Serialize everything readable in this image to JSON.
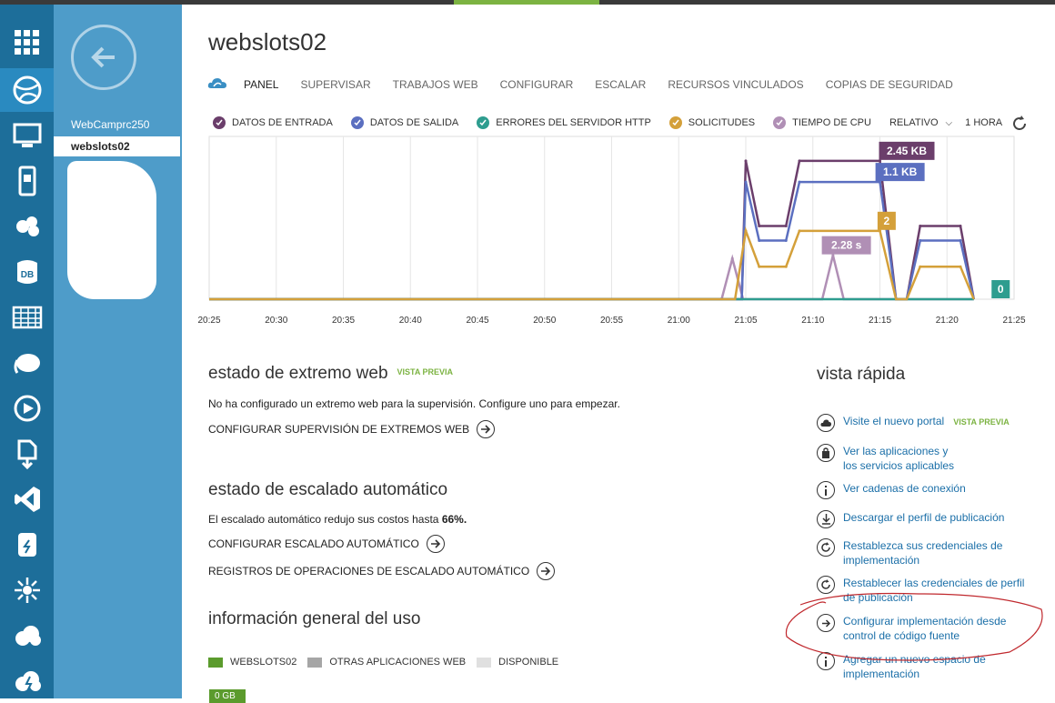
{
  "title": "webslots02",
  "tabs": [
    "PANEL",
    "SUPERVISAR",
    "TRABAJOS WEB",
    "CONFIGURAR",
    "ESCALAR",
    "RECURSOS VINCULADOS",
    "COPIAS DE SEGURIDAD"
  ],
  "sidebar": {
    "items": [
      "WebCamprc250",
      "webslots02"
    ],
    "icons": [
      "all-items-icon",
      "websites-icon",
      "virtual-machines-icon",
      "mobile-services-icon",
      "cloud-services-icon",
      "sql-databases-icon",
      "storage-icon",
      "hdinsight-icon",
      "media-services-icon",
      "service-bus-icon",
      "visual-studio-icon",
      "cache-icon",
      "biztalk-icon",
      "recovery-services-icon",
      "scheduler-icon"
    ]
  },
  "legend": {
    "items": [
      {
        "label": "DATOS DE ENTRADA",
        "color": "#6b3e6b"
      },
      {
        "label": "DATOS DE SALIDA",
        "color": "#5b6fc0"
      },
      {
        "label": "ERRORES DEL SERVIDOR HTTP",
        "color": "#2e9d8f"
      },
      {
        "label": "SOLICITUDES",
        "color": "#d4a03a"
      },
      {
        "label": "TIEMPO DE CPU",
        "color": "#b08fb5"
      }
    ],
    "mode": "RELATIVO",
    "range": "1 HORA"
  },
  "chart_data": {
    "type": "line",
    "x": [
      "20:25",
      "20:30",
      "20:35",
      "20:40",
      "20:45",
      "20:50",
      "20:55",
      "21:00",
      "21:05",
      "21:10",
      "21:15",
      "21:20",
      "21:25"
    ],
    "series": [
      {
        "name": "DATOS DE ENTRADA",
        "color": "#6b3e6b",
        "points": [
          [
            0,
            0
          ],
          [
            39.7,
            0
          ],
          [
            40,
            0.85
          ],
          [
            41,
            0.45
          ],
          [
            43,
            0.45
          ],
          [
            44,
            0.85
          ],
          [
            50,
            0.85
          ],
          [
            51.2,
            0
          ],
          [
            52,
            0
          ],
          [
            53,
            0.45
          ],
          [
            56,
            0.45
          ],
          [
            57,
            0
          ]
        ],
        "badge": "2.45 KB",
        "badge_x": 52.0
      },
      {
        "name": "DATOS DE SALIDA",
        "color": "#5b6fc0",
        "points": [
          [
            0,
            0
          ],
          [
            39.7,
            0
          ],
          [
            40,
            0.72
          ],
          [
            41,
            0.36
          ],
          [
            43,
            0.36
          ],
          [
            44,
            0.72
          ],
          [
            50,
            0.72
          ],
          [
            51.2,
            0
          ],
          [
            52,
            0
          ],
          [
            53,
            0.36
          ],
          [
            56,
            0.36
          ],
          [
            57,
            0
          ]
        ],
        "badge": "1.1 KB",
        "badge_x": 51.5
      },
      {
        "name": "SOLICITUDES",
        "color": "#d4a03a",
        "points": [
          [
            0,
            0
          ],
          [
            39.2,
            0
          ],
          [
            40,
            0.42
          ],
          [
            41,
            0.2
          ],
          [
            43,
            0.2
          ],
          [
            44,
            0.42
          ],
          [
            50,
            0.42
          ],
          [
            51.2,
            0
          ],
          [
            52,
            0
          ],
          [
            53,
            0.2
          ],
          [
            56,
            0.2
          ],
          [
            57,
            0
          ]
        ],
        "badge": "2",
        "badge_x": 50.5
      },
      {
        "name": "TIEMPO DE CPU",
        "color": "#b08fb5",
        "points": [
          [
            0,
            0
          ],
          [
            38.2,
            0
          ],
          [
            39,
            0.25
          ],
          [
            39.8,
            0
          ],
          [
            45.7,
            0
          ],
          [
            46.5,
            0.27
          ],
          [
            47.3,
            0
          ],
          [
            57,
            0
          ]
        ],
        "badge": "2.28 s",
        "badge_x": 47.5
      },
      {
        "name": "ERRORES DEL SERVIDOR HTTP",
        "color": "#2e9d8f",
        "points": [
          [
            0,
            0
          ],
          [
            57,
            0
          ]
        ],
        "badge": "0",
        "badge_x": 59
      }
    ],
    "xlim": [
      0,
      60
    ],
    "grid": true
  },
  "webendpoint": {
    "title": "estado de extremo web",
    "preview": "VISTA PREVIA",
    "text": "No ha configurado un extremo web para la supervisión. Configure uno para empezar.",
    "action": "CONFIGURAR SUPERVISIÓN DE EXTREMOS WEB"
  },
  "autoscale": {
    "title": "estado de escalado automático",
    "text_before": "El escalado automático redujo sus costos hasta ",
    "text_value": "66%.",
    "action1": "CONFIGURAR ESCALADO AUTOMÁTICO",
    "action2": "REGISTROS DE OPERACIONES DE ESCALADO AUTOMÁTICO"
  },
  "usage": {
    "title": "información general del uso",
    "legend": [
      {
        "label": "WEBSLOTS02",
        "color": "#5b9b2d"
      },
      {
        "label": "OTRAS APLICACIONES WEB",
        "color": "#a6a6a6"
      },
      {
        "label": "DISPONIBLE",
        "color": "#e0e0e0"
      }
    ],
    "value": "0 GB"
  },
  "quick": {
    "title": "vista rápida",
    "links": [
      {
        "label": "Visite el nuevo portal",
        "badge": "VISTA PREVIA",
        "icon": "cloud-icon"
      },
      {
        "label": "Ver las aplicaciones y",
        "label2": "los servicios aplicables",
        "icon": "bag-icon"
      },
      {
        "label": "Ver cadenas de conexión",
        "icon": "info-icon"
      },
      {
        "label": "Descargar el perfil de publicación",
        "icon": "download-icon"
      },
      {
        "label": "Restablezca sus credenciales de",
        "label2": "implementación",
        "icon": "reset-icon"
      },
      {
        "label": "Restablecer las credenciales de perfil",
        "label2": "de publicación",
        "icon": "reset-icon"
      },
      {
        "label": "Configurar implementación desde",
        "label2": "control de código fuente",
        "icon": "arrow-icon"
      },
      {
        "label": "Agregar un nuevo espacio de",
        "label2": "implementación",
        "icon": "info-icon"
      }
    ]
  }
}
